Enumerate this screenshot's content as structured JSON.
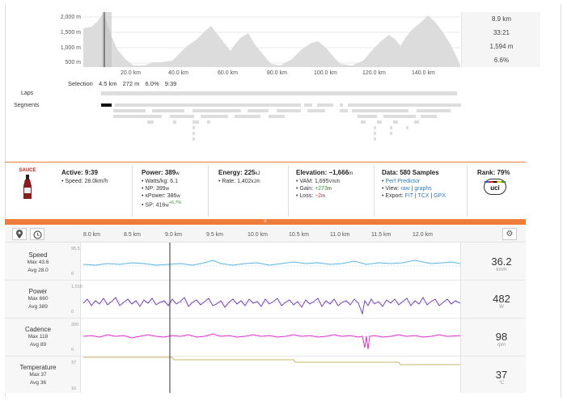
{
  "elevation": {
    "y_labels": [
      "2,000 m",
      "1,500 m",
      "1,000 m",
      "500 m"
    ],
    "x_labels": [
      "20.0 km",
      "40.0 km",
      "60.0 km",
      "80.0 km",
      "100.0 km",
      "120.0 km",
      "140.0 km"
    ],
    "summary": [
      "8.9 km",
      "33:21",
      "1,594 m",
      "6.6%"
    ]
  },
  "selection": {
    "label": "Selection",
    "distance": "4.5 km",
    "elevation": "272 m",
    "grade": "6.0%",
    "time": "9:39"
  },
  "rows": {
    "laps": "Laps",
    "segments": "Segments"
  },
  "stats": {
    "logo": "SAUCE",
    "active": {
      "title": "Active: 9:39",
      "speed": "Speed: 28.0km/h"
    },
    "power": {
      "title": "Power: 389",
      "title_unit": "w",
      "wkg": "Watts/kg: 6.1",
      "np": "NP: 399",
      "np_unit": "w",
      "xpower": "xPower: 386",
      "xpower_unit": "w",
      "sp": "SP: 416",
      "sp_unit": "w",
      "sp_delta": "+6.7%"
    },
    "energy": {
      "title": "Energy: 225",
      "title_unit": "kJ",
      "rate": "Rate: 1,402",
      "rate_unit": "kJ/h"
    },
    "elev": {
      "title": "Elevation: −1,666",
      "title_unit": "m",
      "vam": "VAM: 1,695",
      "vam_unit": "Vm/h",
      "gain_label": "Gain:",
      "gain": "+273",
      "gain_unit": "m",
      "loss_label": "Loss:",
      "loss": "−2",
      "loss_unit": "m"
    },
    "data": {
      "title": "Data: 580 Samples",
      "predictor": "Perf Predictor",
      "view_label": "View:",
      "view_raw": "raw",
      "view_graphs": "graphs",
      "export_label": "Export:",
      "fit": "FIT",
      "tcx": "TCX",
      "gpx": "GPX"
    },
    "rank": {
      "title": "Rank: 79%",
      "uci": "uci"
    }
  },
  "timeline": {
    "ticks": [
      "8.0 km",
      "8.5 km",
      "9.0 km",
      "9.5 km",
      "10.0 km",
      "10.5 km",
      "11.0 km",
      "11.5 km",
      "12.0 km"
    ]
  },
  "streams": [
    {
      "name": "Speed",
      "max": "Max 43.6",
      "avg": "Avg 28.0",
      "axis_top": "95.5",
      "axis_bottom": "0",
      "value": "36.2",
      "unit": "km/h"
    },
    {
      "name": "Power",
      "max": "Max 660",
      "avg": "Avg 389",
      "axis_top": "1,018",
      "axis_bottom": "0",
      "value": "482",
      "unit": "W"
    },
    {
      "name": "Cadence",
      "max": "Max 118",
      "avg": "Avg 89",
      "axis_top": "200",
      "axis_bottom": "0",
      "value": "98",
      "unit": "rpm"
    },
    {
      "name": "Temperature",
      "max": "Max 37",
      "avg": "Avg 36",
      "axis_top": "37",
      "axis_bottom": "16",
      "value": "37",
      "unit": "°C"
    }
  ],
  "colors": {
    "speed": "#5bb5dd",
    "power": "#7744bb",
    "cadence": "#dd33cc",
    "temperature": "#c8b469",
    "accent": "#f07c3c"
  }
}
